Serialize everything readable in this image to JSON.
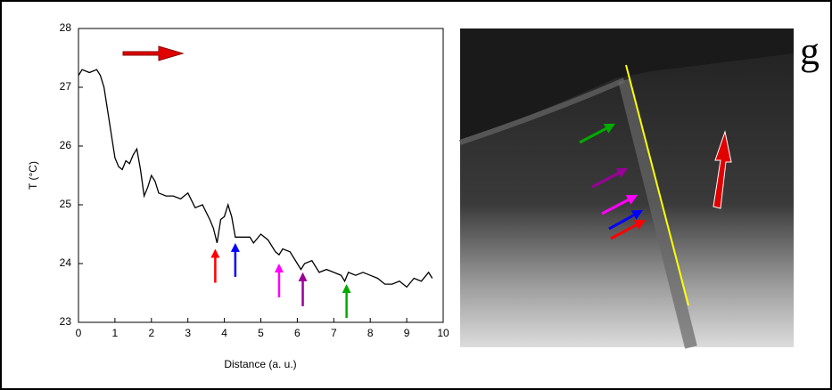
{
  "chart_data": {
    "type": "line",
    "panel_label": "g",
    "x_label": "Distance (a. u.)",
    "y_label": "T (°C)",
    "x": [
      0,
      0.1,
      0.3,
      0.5,
      0.6,
      0.7,
      0.8,
      0.9,
      1.0,
      1.1,
      1.2,
      1.3,
      1.4,
      1.5,
      1.6,
      1.7,
      1.8,
      1.9,
      2.0,
      2.1,
      2.2,
      2.4,
      2.6,
      2.8,
      3.0,
      3.2,
      3.4,
      3.6,
      3.7,
      3.8,
      3.9,
      4.0,
      4.1,
      4.2,
      4.3,
      4.5,
      4.7,
      4.8,
      5.0,
      5.2,
      5.4,
      5.5,
      5.6,
      5.8,
      6.0,
      6.1,
      6.2,
      6.4,
      6.6,
      6.8,
      7.0,
      7.2,
      7.3,
      7.4,
      7.6,
      7.8,
      8.0,
      8.2,
      8.4,
      8.6,
      8.8,
      9.0,
      9.2,
      9.4,
      9.6,
      9.7
    ],
    "series": [
      {
        "color": "#000000",
        "values": [
          27.2,
          27.3,
          27.25,
          27.3,
          27.2,
          27.0,
          26.6,
          26.2,
          25.8,
          25.65,
          25.6,
          25.75,
          25.7,
          25.85,
          25.95,
          25.6,
          25.15,
          25.3,
          25.5,
          25.4,
          25.2,
          25.15,
          25.15,
          25.1,
          25.2,
          24.95,
          25.0,
          24.75,
          24.6,
          24.35,
          24.75,
          24.8,
          25.0,
          24.8,
          24.45,
          24.45,
          24.45,
          24.35,
          24.5,
          24.4,
          24.2,
          24.15,
          24.25,
          24.2,
          24.0,
          23.9,
          24.0,
          24.05,
          23.85,
          23.9,
          23.85,
          23.8,
          23.7,
          23.85,
          23.8,
          23.85,
          23.8,
          23.75,
          23.65,
          23.65,
          23.7,
          23.6,
          23.75,
          23.7,
          23.85,
          23.75
        ]
      }
    ],
    "arrows": [
      {
        "x": 3.75,
        "y": 24.25,
        "color": "#ff0000"
      },
      {
        "x": 4.3,
        "y": 24.35,
        "color": "#0000ff"
      },
      {
        "x": 5.5,
        "y": 24.0,
        "color": "#ff00ff"
      },
      {
        "x": 6.15,
        "y": 23.85,
        "color": "#990099"
      },
      {
        "x": 7.35,
        "y": 23.65,
        "color": "#00aa00"
      }
    ],
    "xlim": [
      0,
      10
    ],
    "xticks": [
      0,
      1,
      2,
      3,
      4,
      5,
      6,
      7,
      8,
      9,
      10
    ],
    "ylim": [
      23,
      28
    ],
    "yticks": [
      23,
      24,
      25,
      26,
      27,
      28
    ]
  }
}
